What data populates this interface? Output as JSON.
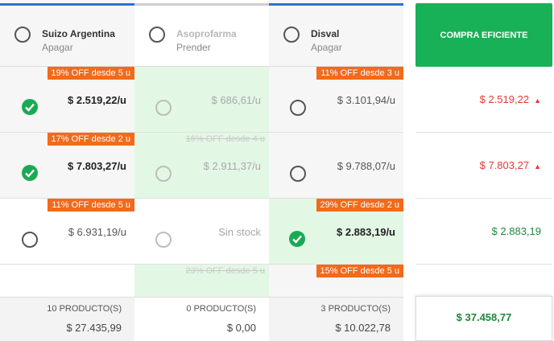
{
  "colors": {
    "accent_blue": "#2e6fd6",
    "green": "#19b157",
    "badge_orange": "#f26a1b",
    "red": "#e53935"
  },
  "suppliers": [
    {
      "name": "Suizo Argentina",
      "action": "Apagar",
      "footer_count": "10 PRODUCTO(S)",
      "footer_total": "$ 27.435,99"
    },
    {
      "name": "Asoprofarma",
      "action": "Prender",
      "footer_count": "0 PRODUCTO(S)",
      "footer_total": "$ 0,00"
    },
    {
      "name": "Disval",
      "action": "Apagar",
      "footer_count": "3 PRODUCTO(S)",
      "footer_total": "$ 10.022,78"
    }
  ],
  "rows": [
    {
      "cells": [
        {
          "badge": "19% OFF desde 5 u",
          "price": "$ 2.519,22/u",
          "selected": true
        },
        {
          "badge": "",
          "price": "$ 686,61/u",
          "selected": false
        },
        {
          "badge": "11% OFF desde 3 u",
          "price": "$ 3.101,94/u",
          "selected": false
        }
      ],
      "best": "$ 2.519,22"
    },
    {
      "cells": [
        {
          "badge": "17% OFF desde 2 u",
          "price": "$ 7.803,27/u",
          "selected": true
        },
        {
          "badge": "16% OFF desde 4 u",
          "price": "$ 2.911,37/u",
          "selected": false
        },
        {
          "badge": "",
          "price": "$ 9.788,07/u",
          "selected": false
        }
      ],
      "best": "$ 7.803,27"
    },
    {
      "cells": [
        {
          "badge": "11% OFF desde 5 u",
          "price": "$ 6.931,19/u",
          "selected": false
        },
        {
          "badge": "",
          "price": "Sin stock",
          "selected": false
        },
        {
          "badge": "29% OFF desde 2 u",
          "price": "$ 2.883,19/u",
          "selected": true
        }
      ],
      "best": "$ 2.883,19"
    },
    {
      "cells": [
        {
          "badge": "",
          "price": "",
          "selected": false
        },
        {
          "badge": "23% OFF desde 5 u",
          "price": "",
          "selected": false
        },
        {
          "badge": "15% OFF desde 5 u",
          "price": "",
          "selected": false
        }
      ],
      "best": ""
    }
  ],
  "buy_button": "COMPRA EFICIENTE",
  "grand_total": "$ 37.458,77"
}
